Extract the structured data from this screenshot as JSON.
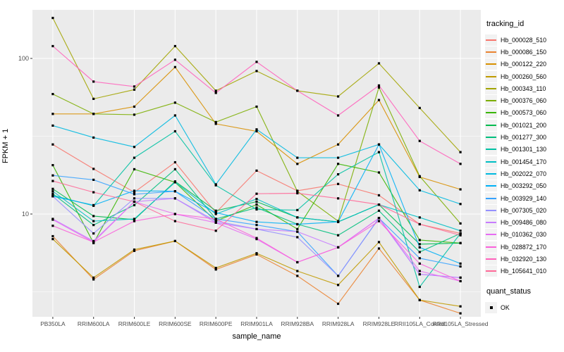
{
  "chart_data": {
    "type": "line",
    "title": "",
    "xlabel": "sample_name",
    "ylabel": "FPKM + 1",
    "scale": "log10",
    "ylim": [
      2.1,
      205
    ],
    "y_major_ticks": [
      100,
      10
    ],
    "y_minor_gridlines": [
      31.62,
      3.162
    ],
    "grid": "major-and-minor-white-on-grey",
    "legend_position": "right",
    "point_marker": {
      "shape": "square",
      "color": "#000000"
    },
    "categories": [
      "PB350LA",
      "RRIM600LA",
      "RRIM600LE",
      "RRIM600SE",
      "RRIM600PE",
      "RRIM901LA",
      "RRIM928BA",
      "RRIM928LA",
      "RRIM928LE",
      "RRII105LA_Control",
      "RRII105LA_Stressed"
    ],
    "series": [
      {
        "name": "Hb_000028_510",
        "color": "#F8766D",
        "values": [
          28,
          19.5,
          13.8,
          21.5,
          10.2,
          19,
          14.1,
          15.6,
          13.2,
          8.6,
          7.5
        ]
      },
      {
        "name": "Hb_000086_150",
        "color": "#EA8331",
        "values": [
          7.2,
          3.8,
          5.8,
          6.7,
          4.4,
          5.5,
          4.0,
          2.65,
          6.0,
          2.8,
          2.3
        ]
      },
      {
        "name": "Hb_000122_220",
        "color": "#D89000",
        "values": [
          44,
          44,
          49,
          88,
          38,
          34,
          21,
          28,
          54,
          17.3,
          14.4
        ]
      },
      {
        "name": "Hb_000260_560",
        "color": "#C09B00",
        "values": [
          6.9,
          3.9,
          5.9,
          6.7,
          4.5,
          5.6,
          4.3,
          3.5,
          6.6,
          2.8,
          2.55
        ]
      },
      {
        "name": "Hb_000343_110",
        "color": "#A3A500",
        "values": [
          182,
          55,
          63,
          120,
          62,
          83,
          62,
          57,
          93,
          48,
          25
        ]
      },
      {
        "name": "Hb_000376_060",
        "color": "#7CAE00",
        "values": [
          59,
          44,
          43.5,
          52,
          39,
          49,
          14,
          9,
          65,
          17.5,
          8.7
        ]
      },
      {
        "name": "Hb_000573_060",
        "color": "#39B600",
        "values": [
          20.6,
          6.5,
          19.4,
          16,
          9,
          11.5,
          8,
          21,
          18.5,
          6.8,
          6.5
        ]
      },
      {
        "name": "Hb_001021_200",
        "color": "#00BB4E",
        "values": [
          14.5,
          9.7,
          9.2,
          16.2,
          10.5,
          12,
          9.5,
          8.9,
          11.5,
          6.4,
          6.5
        ]
      },
      {
        "name": "Hb_001277_300",
        "color": "#00BF7D",
        "values": [
          13.5,
          8.5,
          11.4,
          19.4,
          9.3,
          11,
          8.6,
          7.3,
          10.5,
          5.7,
          7.5
        ]
      },
      {
        "name": "Hb_001301_130",
        "color": "#00C1A3",
        "values": [
          13.2,
          11.3,
          23,
          34,
          15.3,
          10.7,
          10.6,
          18,
          25,
          3.4,
          7.5
        ]
      },
      {
        "name": "Hb_001454_170",
        "color": "#00BFC4",
        "values": [
          14,
          9.0,
          9.3,
          16,
          10,
          12.5,
          9.5,
          8.9,
          11.5,
          9.5,
          7.8
        ]
      },
      {
        "name": "Hb_002022_070",
        "color": "#00BAE0",
        "values": [
          37,
          31,
          27,
          43,
          15.5,
          35,
          23,
          23,
          28,
          14.2,
          11.6
        ]
      },
      {
        "name": "Hb_003292_050",
        "color": "#00B0F6",
        "values": [
          13,
          11.4,
          14.1,
          14,
          10.2,
          8.9,
          8.6,
          8.9,
          28,
          6.1,
          4.8
        ]
      },
      {
        "name": "Hb_003929_140",
        "color": "#35A2FF",
        "values": [
          17.7,
          16.6,
          13.4,
          14,
          9.3,
          8.5,
          7.7,
          4.0,
          9.4,
          5.2,
          4.6
        ]
      },
      {
        "name": "Hb_007305_020",
        "color": "#9590FF",
        "values": [
          13,
          7.5,
          12.6,
          12.6,
          9,
          8,
          7.1,
          4.0,
          9.4,
          4.1,
          3.9
        ]
      },
      {
        "name": "Hb_009486_080",
        "color": "#C77CFF",
        "values": [
          9.3,
          6.7,
          12.0,
          12.6,
          8.8,
          8,
          7.7,
          6.1,
          9.4,
          4.1,
          3.9
        ]
      },
      {
        "name": "Hb_010362_030",
        "color": "#E76BF3",
        "values": [
          9.2,
          6.6,
          12,
          10,
          8.8,
          6.9,
          4.9,
          6.1,
          9.4,
          4.3,
          3.7
        ]
      },
      {
        "name": "Hb_028872_170",
        "color": "#FA62DB",
        "values": [
          8.4,
          6.6,
          9.0,
          10.0,
          9.3,
          7.0,
          4.9,
          6.1,
          9.0,
          4.8,
          3.7
        ]
      },
      {
        "name": "Hb_032920_130",
        "color": "#FF62BC",
        "values": [
          120,
          71,
          66,
          98,
          60,
          95,
          62,
          43,
          67,
          29.5,
          21
        ]
      },
      {
        "name": "Hb_105641_010",
        "color": "#FF6A98",
        "values": [
          16.3,
          13.8,
          12.0,
          9.0,
          7.8,
          13.5,
          13.6,
          12.6,
          11.5,
          8.6,
          7.3
        ]
      }
    ],
    "legend": {
      "tracking_title": "tracking_id",
      "quant_title": "quant_status",
      "quant_label": "OK"
    }
  }
}
